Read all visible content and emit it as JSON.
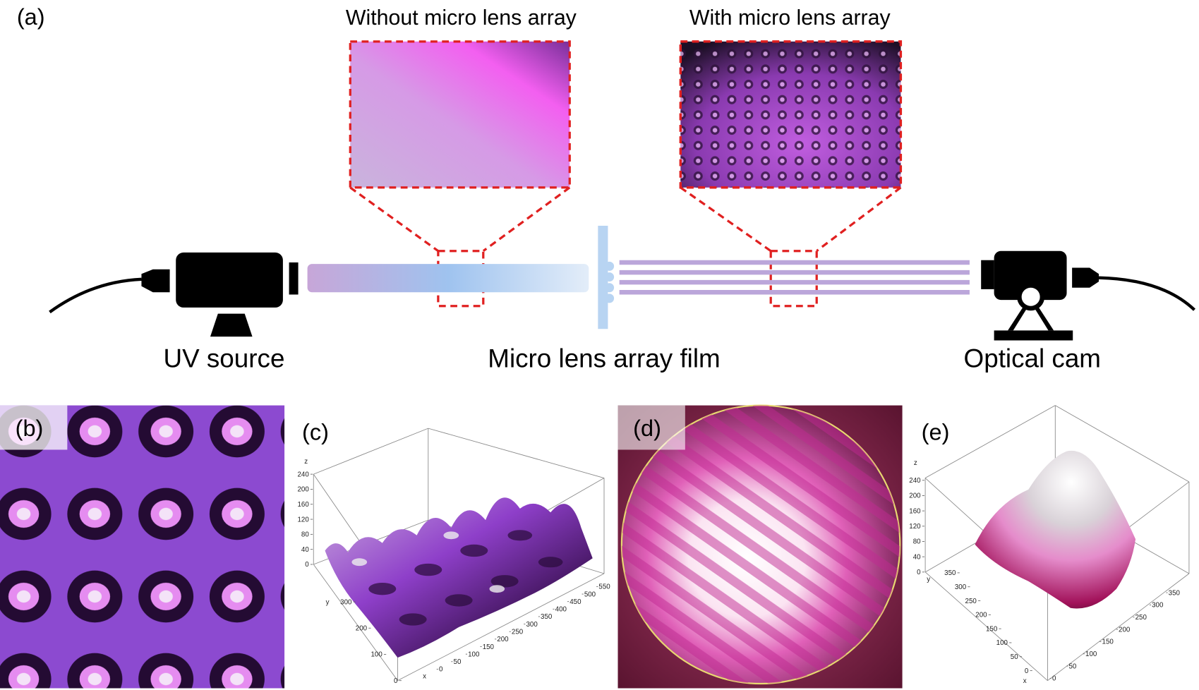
{
  "panel_a": {
    "label": "(a)",
    "inset_titles": [
      "Without micro lens array",
      "With micro lens array"
    ],
    "components": [
      "UV source",
      "Micro lens array film",
      "Optical cam"
    ]
  },
  "panel_b": {
    "label": "(b)"
  },
  "panel_c": {
    "label": "(c)",
    "z_axis_label": "z",
    "x_axis_label": "x",
    "y_axis_label": "y",
    "z_ticks": [
      0,
      40,
      80,
      120,
      160,
      200,
      240
    ],
    "y_ticks": [
      0,
      100,
      200,
      300
    ],
    "x_ticks": [
      0,
      50,
      100,
      150,
      200,
      250,
      300,
      350,
      400,
      450,
      500,
      550
    ]
  },
  "panel_d": {
    "label": "(d)"
  },
  "panel_e": {
    "label": "(e)",
    "z_axis_label": "z",
    "x_axis_label": "x",
    "y_axis_label": "y",
    "z_ticks": [
      0,
      40,
      80,
      120,
      160,
      200,
      240
    ],
    "y_ticks": [
      0,
      50,
      100,
      150,
      200,
      250,
      300,
      350
    ],
    "x_ticks": [
      0,
      50,
      100,
      150,
      200,
      250,
      300,
      350
    ]
  }
}
